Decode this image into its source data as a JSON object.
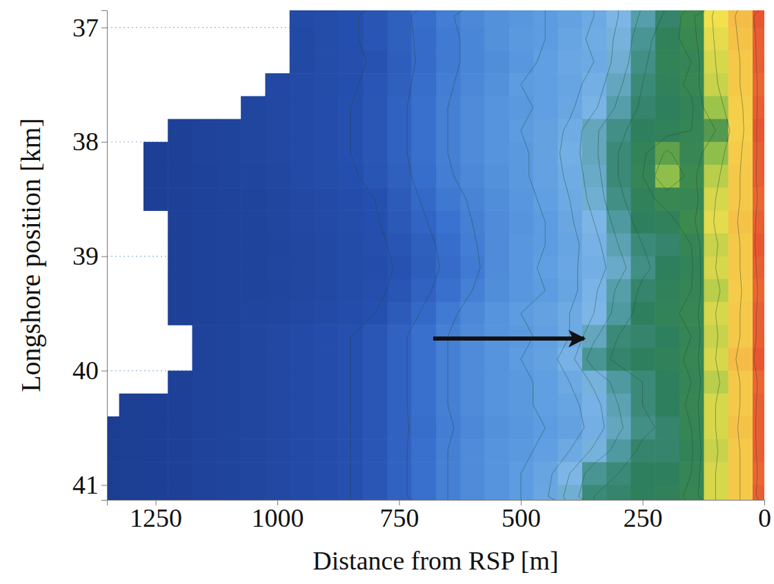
{
  "chart_data": {
    "type": "heatmap",
    "xlabel": "Distance from RSP [m]",
    "ylabel": "Longshore position [km]",
    "x": [
      0,
      50,
      100,
      150,
      200,
      250,
      300,
      350,
      400,
      450,
      500,
      550,
      600,
      650,
      700,
      750,
      800,
      850,
      900,
      950,
      1000,
      1050,
      1100,
      1150,
      1200,
      1250,
      1300,
      1350
    ],
    "y": [
      36.9,
      37.1,
      37.3,
      37.5,
      37.7,
      37.9,
      38.1,
      38.3,
      38.5,
      38.7,
      38.9,
      39.1,
      39.3,
      39.5,
      39.7,
      39.9,
      40.1,
      40.3,
      40.5,
      40.7,
      40.9,
      41.1
    ],
    "z": [
      [
        1.6,
        0.2,
        -0.8,
        -2.2,
        -2.9,
        -3.4,
        -4.0,
        -4.5,
        -4.8,
        -5.0,
        -5.2,
        -5.4,
        -5.7,
        -6.1,
        -6.7,
        -7.3,
        -7.8,
        -8.1,
        -8.4,
        -8.6,
        null,
        null,
        null,
        null,
        null,
        null,
        null,
        null
      ],
      [
        1.5,
        0.1,
        -0.9,
        -2.3,
        -2.7,
        -3.2,
        -3.9,
        -4.4,
        -4.7,
        -5.0,
        -5.1,
        -5.4,
        -5.8,
        -6.2,
        -6.8,
        -7.3,
        -7.8,
        -8.1,
        -8.4,
        -8.7,
        null,
        null,
        null,
        null,
        null,
        null,
        null,
        null
      ],
      [
        1.5,
        0.0,
        -1.0,
        -2.5,
        -2.6,
        -3.1,
        -3.8,
        -4.5,
        -4.6,
        -4.9,
        -5.2,
        -5.5,
        -5.8,
        -6.2,
        -6.8,
        -7.4,
        -7.9,
        -8.2,
        -8.4,
        -8.7,
        null,
        null,
        null,
        null,
        null,
        null,
        null,
        null
      ],
      [
        1.4,
        0.0,
        -1.1,
        -2.4,
        -2.7,
        -3.0,
        -3.6,
        -4.3,
        -4.7,
        -4.9,
        -5.0,
        -5.4,
        -5.7,
        -6.1,
        -6.7,
        -7.3,
        -7.8,
        -8.1,
        -8.4,
        -8.6,
        -8.8,
        null,
        null,
        null,
        null,
        null,
        null,
        null
      ],
      [
        1.5,
        -0.2,
        -1.4,
        -2.6,
        -2.8,
        -2.9,
        -3.4,
        -4.1,
        -4.6,
        -4.9,
        -5.1,
        -5.3,
        -5.6,
        -6.0,
        -6.6,
        -7.2,
        -7.7,
        -8.0,
        -8.3,
        -8.6,
        -8.8,
        -9.0,
        null,
        null,
        null,
        null,
        null,
        null
      ],
      [
        1.6,
        -0.3,
        -2.0,
        -2.5,
        -2.7,
        -2.8,
        -3.1,
        -3.6,
        -4.4,
        -4.8,
        -5.0,
        -5.3,
        -5.6,
        -6.0,
        -6.6,
        -7.2,
        -7.7,
        -8.0,
        -8.3,
        -8.6,
        -8.8,
        -9.0,
        -9.2,
        -9.3,
        -9.5,
        null,
        null,
        null
      ],
      [
        1.5,
        -0.1,
        -1.5,
        -2.4,
        -1.9,
        -2.6,
        -3.0,
        -3.6,
        -4.3,
        -4.8,
        -5.1,
        -5.3,
        -5.6,
        -6.0,
        -6.6,
        -7.2,
        -7.7,
        -8.0,
        -8.3,
        -8.6,
        -8.8,
        -9.0,
        -9.2,
        -9.3,
        -9.5,
        -9.6,
        null,
        null
      ],
      [
        1.5,
        0.0,
        -1.2,
        -2.2,
        -1.5,
        -2.5,
        -3.0,
        -3.7,
        -4.4,
        -4.8,
        -5.1,
        -5.4,
        -5.7,
        -6.1,
        -6.7,
        -7.3,
        -7.8,
        -8.1,
        -8.4,
        -8.6,
        -8.9,
        -9.1,
        -9.2,
        -9.4,
        -9.5,
        -9.6,
        null,
        null
      ],
      [
        1.4,
        0.0,
        -1.0,
        -2.4,
        -2.3,
        -2.7,
        -3.1,
        -3.8,
        -4.5,
        -4.9,
        -5.2,
        -5.5,
        -5.9,
        -6.3,
        -6.9,
        -7.5,
        -8.0,
        -8.3,
        -8.6,
        -8.8,
        -9.0,
        -9.2,
        -9.3,
        -9.4,
        -9.5,
        -9.6,
        null,
        null
      ],
      [
        1.5,
        0.1,
        -0.9,
        -2.2,
        -2.7,
        -2.8,
        -3.3,
        -4.0,
        -4.6,
        -5.0,
        -5.3,
        -5.6,
        -6.0,
        -6.5,
        -7.1,
        -7.6,
        -8.1,
        -8.4,
        -8.6,
        -8.8,
        -9.0,
        -9.2,
        -9.3,
        -9.4,
        -9.5,
        null,
        null,
        null
      ],
      [
        1.6,
        0.0,
        -1.1,
        -2.5,
        -2.9,
        -3.0,
        -3.5,
        -4.2,
        -4.7,
        -5.0,
        -5.2,
        -5.6,
        -6.1,
        -6.7,
        -7.3,
        -7.8,
        -8.2,
        -8.5,
        -8.7,
        -8.9,
        -9.1,
        -9.2,
        -9.3,
        -9.4,
        -9.5,
        null,
        null,
        null
      ],
      [
        1.5,
        0.0,
        -1.0,
        -2.6,
        -2.8,
        -3.1,
        -3.7,
        -4.3,
        -4.6,
        -4.9,
        -5.2,
        -5.6,
        -6.2,
        -6.8,
        -7.4,
        -7.9,
        -8.3,
        -8.5,
        -8.7,
        -8.9,
        -9.0,
        -9.2,
        -9.3,
        -9.4,
        -9.5,
        null,
        null,
        null
      ],
      [
        1.4,
        -0.1,
        -1.2,
        -2.5,
        -2.7,
        -2.9,
        -3.4,
        -4.1,
        -4.7,
        -5.0,
        -5.2,
        -5.5,
        -6.0,
        -6.6,
        -7.2,
        -7.8,
        -8.2,
        -8.5,
        -8.7,
        -8.9,
        -9.1,
        -9.2,
        -9.3,
        -9.4,
        -9.5,
        null,
        null,
        null
      ],
      [
        1.5,
        0.0,
        -1.0,
        -2.4,
        -2.6,
        -2.8,
        -3.3,
        -4.0,
        -4.5,
        -4.8,
        -5.0,
        -5.3,
        -5.7,
        -6.2,
        -6.9,
        -7.5,
        -8.0,
        -8.3,
        -8.6,
        -8.8,
        -9.0,
        -9.1,
        -9.3,
        -9.4,
        -9.5,
        null,
        null,
        null
      ],
      [
        1.5,
        0.0,
        -1.1,
        -2.5,
        -2.8,
        -2.9,
        -3.0,
        -3.6,
        -4.5,
        -4.9,
        -5.1,
        -5.3,
        -5.6,
        -6.0,
        -6.6,
        -7.2,
        -7.7,
        -8.0,
        -8.3,
        -8.6,
        -8.8,
        -9.0,
        -9.2,
        -9.3,
        null,
        null,
        null,
        null
      ],
      [
        1.6,
        0.2,
        -1.0,
        -2.4,
        -2.7,
        -2.8,
        -2.9,
        -3.2,
        -4.2,
        -4.8,
        -5.0,
        -5.3,
        -5.6,
        -6.0,
        -6.6,
        -7.2,
        -7.7,
        -8.0,
        -8.3,
        -8.6,
        -8.8,
        -9.0,
        -9.2,
        -9.3,
        null,
        null,
        null,
        null
      ],
      [
        1.4,
        0.0,
        -1.2,
        -2.5,
        -2.8,
        -3.0,
        -3.3,
        -3.9,
        -4.5,
        -4.9,
        -5.1,
        -5.3,
        -5.6,
        -6.0,
        -6.6,
        -7.2,
        -7.7,
        -8.0,
        -8.3,
        -8.6,
        -8.8,
        -9.0,
        -9.2,
        -9.3,
        -9.5,
        null,
        null,
        null
      ],
      [
        1.5,
        0.0,
        -1.0,
        -2.4,
        -2.8,
        -3.0,
        -3.5,
        -4.2,
        -4.7,
        -4.9,
        -5.1,
        -5.3,
        -5.6,
        -6.0,
        -6.6,
        -7.2,
        -7.7,
        -8.0,
        -8.3,
        -8.6,
        -8.8,
        -9.0,
        -9.2,
        -9.3,
        -9.5,
        -9.6,
        -9.7,
        null
      ],
      [
        1.5,
        0.1,
        -1.0,
        -2.5,
        -2.9,
        -3.1,
        -3.6,
        -4.3,
        -4.8,
        -5.0,
        -5.2,
        -5.4,
        -5.7,
        -6.1,
        -6.7,
        -7.2,
        -7.7,
        -8.0,
        -8.3,
        -8.6,
        -8.8,
        -9.0,
        -9.2,
        -9.3,
        -9.5,
        -9.6,
        -9.7,
        -9.8
      ],
      [
        1.5,
        0.0,
        -1.1,
        -2.6,
        -2.9,
        -2.9,
        -3.3,
        -3.9,
        -4.5,
        -4.9,
        -5.1,
        -5.3,
        -5.6,
        -6.0,
        -6.6,
        -7.2,
        -7.7,
        -8.0,
        -8.3,
        -8.6,
        -8.8,
        -9.0,
        -9.2,
        -9.3,
        -9.5,
        -9.6,
        -9.7,
        -9.8
      ],
      [
        1.4,
        0.0,
        -1.0,
        -2.5,
        -2.8,
        -2.8,
        -3.0,
        -3.2,
        -4.0,
        -4.7,
        -5.0,
        -5.3,
        -5.6,
        -6.0,
        -6.6,
        -7.2,
        -7.7,
        -8.0,
        -8.3,
        -8.6,
        -8.8,
        -9.0,
        -9.2,
        -9.3,
        -9.5,
        -9.6,
        -9.7,
        -9.8
      ],
      [
        1.5,
        0.0,
        -1.0,
        -2.4,
        -2.7,
        -2.8,
        -2.9,
        -3.0,
        -3.8,
        -4.6,
        -5.0,
        -5.3,
        -5.6,
        -6.0,
        -6.6,
        -7.2,
        -7.7,
        -8.0,
        -8.3,
        -8.6,
        -8.8,
        -9.0,
        -9.2,
        -9.3,
        -9.5,
        -9.6,
        -9.7,
        -9.8
      ]
    ],
    "zlim": [
      -10,
      2
    ],
    "contour_levels": [
      -8,
      -7,
      -6,
      -5,
      -4.5,
      -4,
      -3.5,
      -3,
      -2.5,
      -2,
      -1,
      0,
      1
    ],
    "arrow": {
      "x": [
        680,
        370
      ],
      "y": 39.72
    },
    "xlim": [
      1350,
      0
    ],
    "ylim": [
      36.85,
      41.13
    ],
    "xticks": [
      1250,
      1000,
      750,
      500,
      250,
      0
    ],
    "yticks": [
      37,
      38,
      39,
      40,
      41
    ],
    "grid": "y"
  }
}
